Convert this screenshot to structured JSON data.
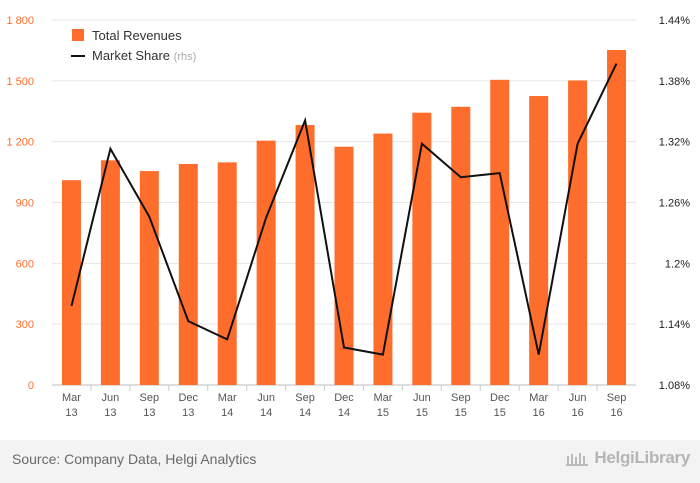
{
  "chart_data": {
    "type": "bar",
    "categories": [
      "Mar 13",
      "Jun 13",
      "Sep 13",
      "Dec 13",
      "Mar 14",
      "Jun 14",
      "Sep 14",
      "Dec 14",
      "Mar 15",
      "Jun 15",
      "Sep 15",
      "Dec 15",
      "Mar 16",
      "Jun 16",
      "Sep 16"
    ],
    "series": [
      {
        "name": "Total Revenues",
        "type": "bar",
        "axis": "left",
        "color": "#ff6d2d",
        "values": [
          1010,
          1108,
          1055,
          1090,
          1098,
          1205,
          1282,
          1175,
          1240,
          1343,
          1372,
          1505,
          1425,
          1502,
          1652
        ]
      },
      {
        "name": "Market Share",
        "suffix": "(rhs)",
        "type": "line",
        "axis": "right",
        "color": "#111111",
        "values": [
          1.158,
          1.313,
          1.246,
          1.143,
          1.125,
          1.245,
          1.341,
          1.117,
          1.11,
          1.318,
          1.285,
          1.289,
          1.11,
          1.318,
          1.397
        ]
      }
    ],
    "y_left": {
      "min": 0,
      "max": 1800,
      "ticks": [
        0,
        300,
        600,
        900,
        1200,
        1500,
        1800
      ],
      "tick_labels": [
        "0",
        "300",
        "600",
        "900",
        "1 200",
        "1 500",
        "1 800"
      ]
    },
    "y_right": {
      "min": 1.08,
      "max": 1.44,
      "ticks": [
        1.08,
        1.14,
        1.2,
        1.26,
        1.32,
        1.38,
        1.44
      ],
      "tick_labels": [
        "1.08%",
        "1.14%",
        "1.2%",
        "1.26%",
        "1.32%",
        "1.38%",
        "1.44%"
      ]
    },
    "grid": true,
    "legend": "top-left"
  },
  "footer": {
    "source": "Source: Company Data, Helgi Analytics",
    "logo": "HelgiLibrary"
  },
  "colors": {
    "bar": "#ff6d2d",
    "line": "#111111",
    "left_axis_text": "#ff6d2d",
    "grid": "#e6e6e6"
  }
}
